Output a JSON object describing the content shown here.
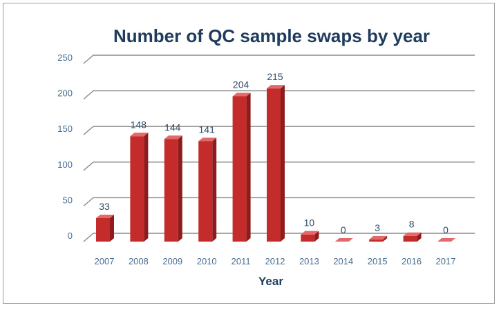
{
  "chart_data": {
    "type": "bar",
    "title": "Number of QC sample swaps by year",
    "xlabel": "Year",
    "ylabel": "",
    "categories": [
      "2007",
      "2008",
      "2009",
      "2010",
      "2011",
      "2012",
      "2013",
      "2014",
      "2015",
      "2016",
      "2017"
    ],
    "values": [
      33,
      148,
      144,
      141,
      204,
      215,
      10,
      0,
      3,
      8,
      0
    ],
    "data_labels": [
      "33",
      "148",
      "144",
      "141",
      "204",
      "215",
      "10",
      "0",
      "3",
      "8",
      "0"
    ],
    "ylim": [
      0,
      250
    ],
    "yticks": [
      0,
      50,
      100,
      150,
      200,
      250
    ],
    "ytick_labels": [
      "0",
      "50",
      "100",
      "150",
      "200",
      "250"
    ],
    "grid": true,
    "legend": "none",
    "colors": {
      "bar_front": "#c42b2b",
      "bar_side": "#8e1c1c",
      "bar_top": "#e26a6a",
      "title": "#1f3b5e"
    }
  }
}
